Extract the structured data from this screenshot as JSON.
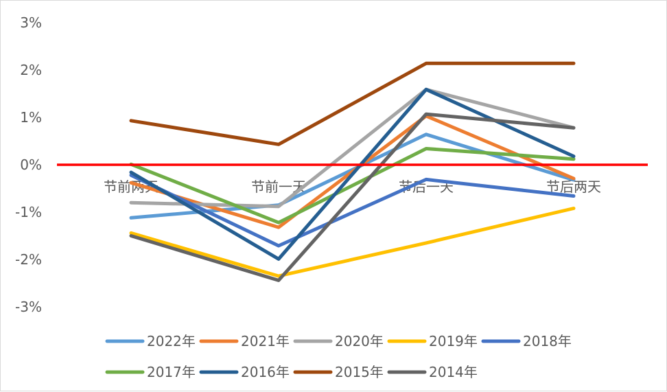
{
  "chart_data": {
    "type": "line",
    "title": "",
    "xlabel": "",
    "ylabel": "",
    "categories": [
      "节前两天",
      "节前一天",
      "节后一天",
      "节后两天"
    ],
    "ylim": [
      -3,
      3
    ],
    "yticks": [
      3,
      2,
      1,
      0,
      -1,
      -2,
      -3
    ],
    "ytick_labels": [
      "3%",
      "2%",
      "1%",
      "0%",
      "-1%",
      "-2%",
      "-3%"
    ],
    "value_unit": "%",
    "zero_line_color": "#ff0000",
    "grid": false,
    "legend_position": "bottom",
    "series": [
      {
        "name": "2022年",
        "color": "#5b9bd5",
        "values": [
          -1.12,
          -0.85,
          0.64,
          -0.32
        ]
      },
      {
        "name": "2021年",
        "color": "#ed7d31",
        "values": [
          -0.38,
          -1.32,
          1.03,
          -0.29
        ]
      },
      {
        "name": "2020年",
        "color": "#a5a5a5",
        "values": [
          -0.8,
          -0.88,
          1.59,
          0.78
        ]
      },
      {
        "name": "2019年",
        "color": "#ffc000",
        "values": [
          -1.44,
          -2.35,
          -1.65,
          -0.92
        ]
      },
      {
        "name": "2018年",
        "color": "#4472c4",
        "values": [
          -0.22,
          -1.71,
          -0.31,
          -0.66
        ]
      },
      {
        "name": "2017年",
        "color": "#70ad47",
        "values": [
          0.01,
          -1.22,
          0.34,
          0.12
        ]
      },
      {
        "name": "2016年",
        "color": "#255e91",
        "values": [
          -0.16,
          -1.99,
          1.59,
          0.18
        ]
      },
      {
        "name": "2015年",
        "color": "#9e480e",
        "values": [
          0.93,
          0.43,
          2.14,
          2.14
        ]
      },
      {
        "name": "2014年",
        "color": "#636363",
        "values": [
          -1.5,
          -2.44,
          1.07,
          0.78
        ]
      }
    ]
  }
}
